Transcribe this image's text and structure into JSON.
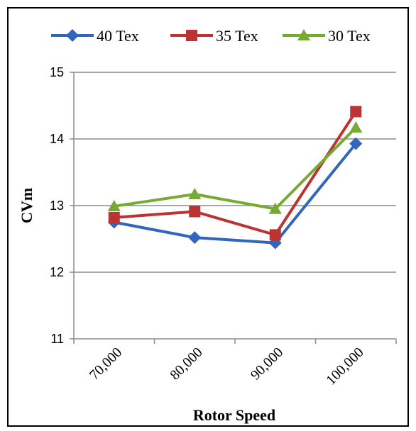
{
  "chart_data": {
    "type": "line",
    "title": "",
    "xlabel": "Rotor Speed",
    "ylabel": "CVm",
    "categories": [
      "70,000",
      "80,000",
      "90,000",
      "100,000"
    ],
    "ylim": [
      11,
      15
    ],
    "yticks": [
      "11",
      "12",
      "13",
      "14",
      "15"
    ],
    "grid": true,
    "legend_position": "top",
    "series": [
      {
        "name": "40 Tex",
        "values": [
          12.75,
          12.52,
          12.44,
          13.93
        ],
        "color": "#3366bb",
        "marker": "diamond"
      },
      {
        "name": "35 Tex",
        "values": [
          12.82,
          12.91,
          12.56,
          14.41
        ],
        "color": "#bb3333",
        "marker": "square"
      },
      {
        "name": "30 Tex",
        "values": [
          12.99,
          13.17,
          12.95,
          14.17
        ],
        "color": "#77aa33",
        "marker": "triangle"
      }
    ]
  }
}
